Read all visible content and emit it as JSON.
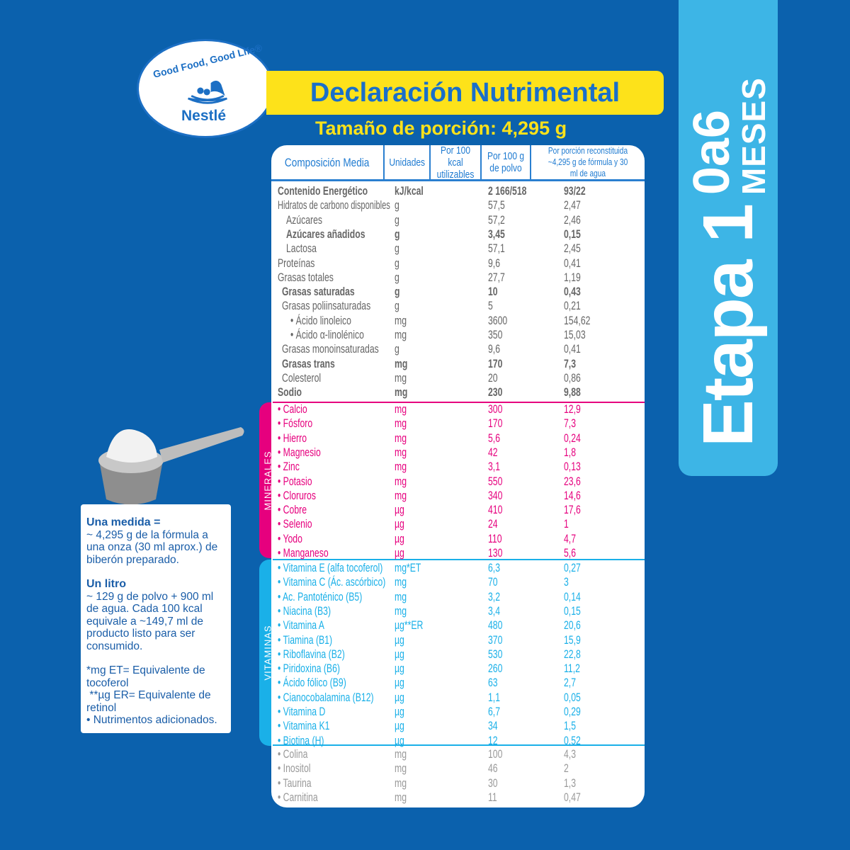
{
  "stage": {
    "etapa": "Etapa 1",
    "age": "0a6",
    "months": "MESES"
  },
  "logo": {
    "slogan": "Good Food, Good Life®",
    "brand": "Nestlé"
  },
  "title": "Declaración Nutrimental",
  "serving": "Tamaño de porción: 4,295 g",
  "colors": {
    "background": "#0b61ad",
    "tab": "#3db5e6",
    "banner": "#fde21a",
    "title": "#1a6fca",
    "general": "#666666",
    "minerals": "#e6007e",
    "vitamins": "#1ab0e8",
    "others": "#999999"
  },
  "headers": [
    "Composición Media",
    "Unidades",
    "Por 100 kcal utilizables",
    "Por 100 g de polvo",
    "Por porción reconstituida ~4,295 g de fórmula y 30 ml de agua"
  ],
  "sections": {
    "minerals": "MINERALES",
    "vitamins": "VITAMINAS"
  },
  "general": [
    {
      "name": "Contenido Energético",
      "unit": "kJ/kcal",
      "per100g": "2 166/518",
      "portion": "93/22",
      "bold": true,
      "indent": 0
    },
    {
      "name": "Hidratos de carbono disponibles",
      "unit": "g",
      "per100g": "57,5",
      "portion": "2,47",
      "indent": 0
    },
    {
      "name": "Azúcares",
      "unit": "g",
      "per100g": "57,2",
      "portion": "2,46",
      "indent": 2
    },
    {
      "name": "Azúcares añadidos",
      "unit": "g",
      "per100g": "3,45",
      "portion": "0,15",
      "bold": true,
      "indent": 2
    },
    {
      "name": "Lactosa",
      "unit": "g",
      "per100g": "57,1",
      "portion": "2,45",
      "indent": 2
    },
    {
      "name": "Proteínas",
      "unit": "g",
      "per100g": "9,6",
      "portion": "0,41",
      "indent": 0
    },
    {
      "name": "Grasas totales",
      "unit": "g",
      "per100g": "27,7",
      "portion": "1,19",
      "indent": 0
    },
    {
      "name": "Grasas saturadas",
      "unit": "g",
      "per100g": "10",
      "portion": "0,43",
      "bold": true,
      "indent": 1
    },
    {
      "name": "Grasas poliinsaturadas",
      "unit": "g",
      "per100g": "5",
      "portion": "0,21",
      "indent": 1
    },
    {
      "name": "• Ácido linoleico",
      "unit": "mg",
      "per100g": "3600",
      "portion": "154,62",
      "indent": 3
    },
    {
      "name": "• Ácido α-linolénico",
      "unit": "mg",
      "per100g": "350",
      "portion": "15,03",
      "indent": 3
    },
    {
      "name": "Grasas monoinsaturadas",
      "unit": "g",
      "per100g": "9,6",
      "portion": "0,41",
      "indent": 1
    },
    {
      "name": "Grasas trans",
      "unit": "mg",
      "per100g": "170",
      "portion": "7,3",
      "bold": true,
      "indent": 1
    },
    {
      "name": "Colesterol",
      "unit": "mg",
      "per100g": "20",
      "portion": "0,86",
      "indent": 1
    },
    {
      "name": "Sodio",
      "unit": "mg",
      "per100g": "230",
      "portion": "9,88",
      "bold": true,
      "indent": 0
    }
  ],
  "minerals": [
    {
      "name": "• Calcio",
      "unit": "mg",
      "per100g": "300",
      "portion": "12,9"
    },
    {
      "name": "• Fósforo",
      "unit": "mg",
      "per100g": "170",
      "portion": "7,3"
    },
    {
      "name": "• Hierro",
      "unit": "mg",
      "per100g": "5,6",
      "portion": "0,24"
    },
    {
      "name": "• Magnesio",
      "unit": "mg",
      "per100g": "42",
      "portion": "1,8"
    },
    {
      "name": "• Zinc",
      "unit": "mg",
      "per100g": "3,1",
      "portion": "0,13"
    },
    {
      "name": "• Potasio",
      "unit": "mg",
      "per100g": "550",
      "portion": "23,6"
    },
    {
      "name": "• Cloruros",
      "unit": "mg",
      "per100g": "340",
      "portion": "14,6"
    },
    {
      "name": "• Cobre",
      "unit": "µg",
      "per100g": "410",
      "portion": "17,6"
    },
    {
      "name": "• Selenio",
      "unit": "µg",
      "per100g": "24",
      "portion": "1"
    },
    {
      "name": "• Yodo",
      "unit": "µg",
      "per100g": "110",
      "portion": "4,7"
    },
    {
      "name": "• Manganeso",
      "unit": "µg",
      "per100g": "130",
      "portion": "5,6"
    }
  ],
  "vitamins": [
    {
      "name": "• Vitamina E (alfa tocoferol)",
      "unit": "mg*ET",
      "per100g": "6,3",
      "portion": "0,27"
    },
    {
      "name": "• Vitamina C (Ác. ascórbico)",
      "unit": "mg",
      "per100g": "70",
      "portion": "3"
    },
    {
      "name": "• Ac. Pantoténico (B5)",
      "unit": "mg",
      "per100g": "3,2",
      "portion": "0,14"
    },
    {
      "name": "• Niacina (B3)",
      "unit": "mg",
      "per100g": "3,4",
      "portion": "0,15"
    },
    {
      "name": "• Vitamina A",
      "unit": "µg**ER",
      "per100g": "480",
      "portion": "20,6"
    },
    {
      "name": "• Tiamina (B1)",
      "unit": "µg",
      "per100g": "370",
      "portion": "15,9"
    },
    {
      "name": "• Riboflavina (B2)",
      "unit": "µg",
      "per100g": "530",
      "portion": "22,8"
    },
    {
      "name": "• Piridoxina (B6)",
      "unit": "µg",
      "per100g": "260",
      "portion": "11,2"
    },
    {
      "name": "• Ácido fólico (B9)",
      "unit": "µg",
      "per100g": "63",
      "portion": "2,7"
    },
    {
      "name": "• Cianocobalamina (B12)",
      "unit": "µg",
      "per100g": "1,1",
      "portion": "0,05"
    },
    {
      "name": "• Vitamina D",
      "unit": "µg",
      "per100g": "6,7",
      "portion": "0,29"
    },
    {
      "name": "• Vitamina K1",
      "unit": "µg",
      "per100g": "34",
      "portion": "1,5"
    },
    {
      "name": "• Biotina (H)",
      "unit": "µg",
      "per100g": "12",
      "portion": "0,52"
    }
  ],
  "others": [
    {
      "name": "• Colina",
      "unit": "mg",
      "per100g": "100",
      "portion": "4,3"
    },
    {
      "name": "• Inositol",
      "unit": "mg",
      "per100g": "46",
      "portion": "2"
    },
    {
      "name": "• Taurina",
      "unit": "mg",
      "per100g": "30",
      "portion": "1,3"
    },
    {
      "name": "• Carnitina",
      "unit": "mg",
      "per100g": "11",
      "portion": "0,47"
    }
  ],
  "info": {
    "measure_title": "Una medida =",
    "measure_text": "~ 4,295 g de la fórmula a una onza (30 ml aprox.) de biberón  preparado.",
    "liter_title": "Un litro",
    "liter_text": "~ 129 g de polvo + 900 ml de agua.  Cada 100 kcal equivale a ~149,7 ml de producto listo  para ser consumido.",
    "note1": "*mg ET= Equivalente de tocoferol",
    "note2": " **µg ER= Equivalente de retinol",
    "note3": "• Nutrimentos adicionados."
  }
}
